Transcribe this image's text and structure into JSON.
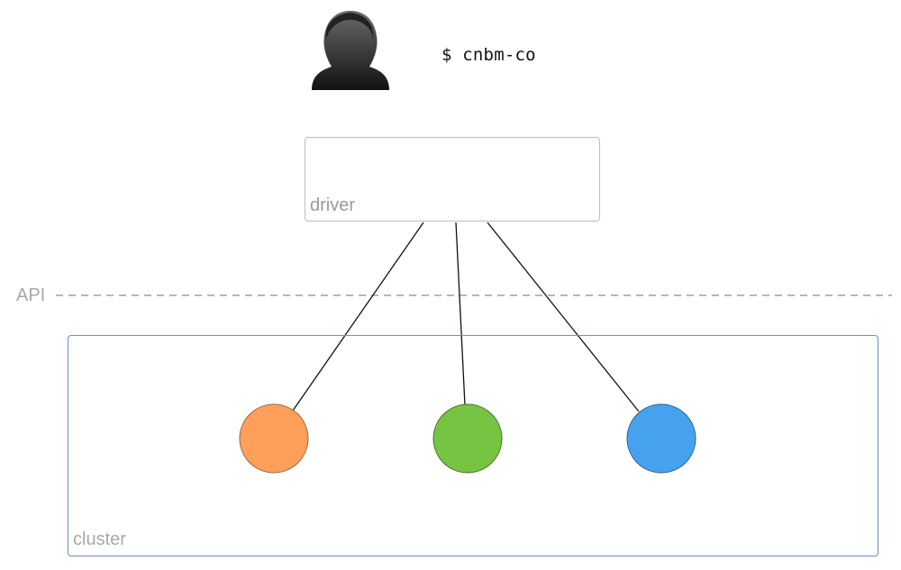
{
  "user": {
    "icon": "person-silhouette-icon",
    "command": "$ cnbm-co"
  },
  "driver": {
    "label": "driver"
  },
  "api": {
    "label": "API"
  },
  "cluster": {
    "label": "cluster",
    "border_color": "#6e8fc2",
    "nodes": [
      {
        "color": "#ff9f5a",
        "stroke": "#8a6a4a"
      },
      {
        "color": "#76c442",
        "stroke": "#4a6e32"
      },
      {
        "color": "#46a2ef",
        "stroke": "#2e5f8e"
      }
    ]
  }
}
